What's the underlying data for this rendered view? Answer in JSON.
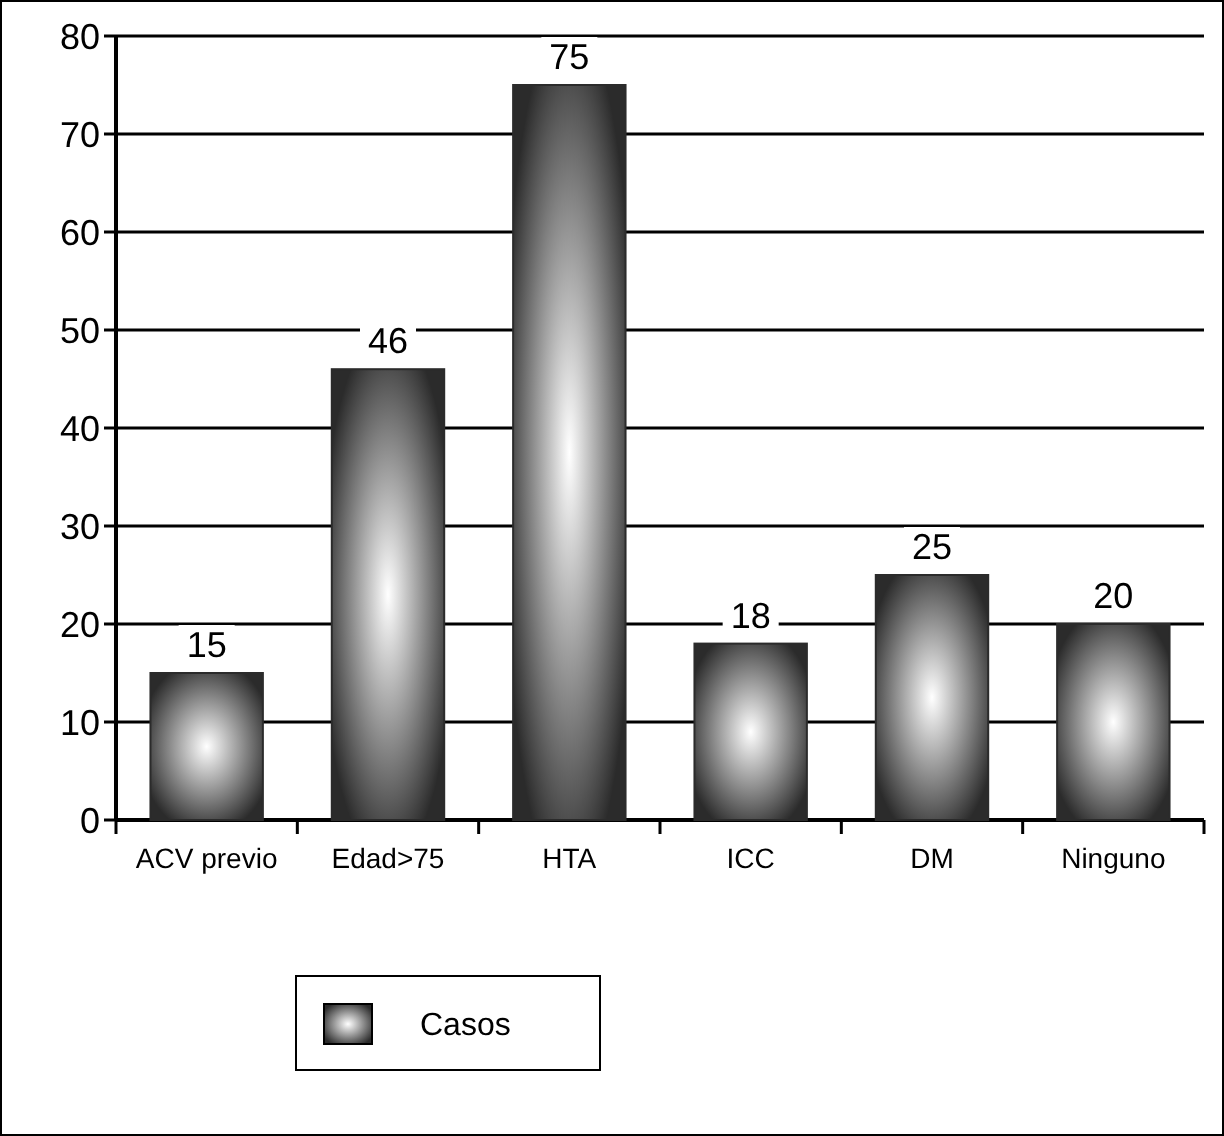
{
  "chart_data": {
    "type": "bar",
    "categories": [
      "ACV previo",
      "Edad>75",
      "HTA",
      "ICC",
      "DM",
      "Ninguno"
    ],
    "series": [
      {
        "name": "Casos",
        "color": "#2b2b2b",
        "values": [
          15,
          46,
          75,
          18,
          25,
          20
        ]
      }
    ],
    "ylim": [
      0,
      80
    ],
    "yticks": [
      0,
      10,
      20,
      30,
      40,
      50,
      60,
      70,
      80
    ],
    "grid": "y",
    "data_labels": true,
    "legend": "bottom"
  }
}
